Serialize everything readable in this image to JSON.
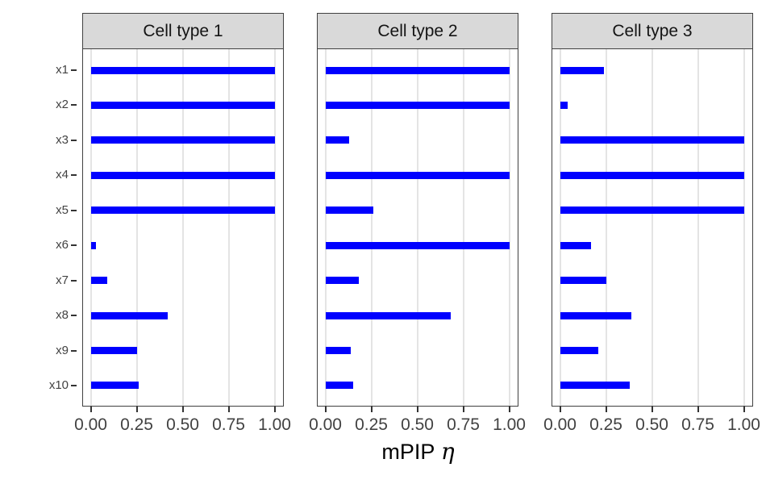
{
  "chart_data": {
    "type": "bar",
    "orientation": "horizontal",
    "title": "",
    "xlabel_text": "mPIP",
    "xlabel_symbol": "η",
    "categories": [
      "x1",
      "x2",
      "x3",
      "x4",
      "x5",
      "x6",
      "x7",
      "x8",
      "x9",
      "x10"
    ],
    "x_tick_labels": [
      "0.00",
      "0.25",
      "0.50",
      "0.75",
      "1.00"
    ],
    "x_tick_values": [
      0,
      0.25,
      0.5,
      0.75,
      1.0
    ],
    "xlim": [
      0,
      1
    ],
    "grid": "major-vertical-only",
    "legend": false,
    "series": [
      {
        "name": "Cell type 1",
        "values": [
          1.0,
          1.0,
          1.0,
          1.0,
          1.0,
          0.03,
          0.09,
          0.42,
          0.25,
          0.26
        ]
      },
      {
        "name": "Cell type 2",
        "values": [
          1.0,
          1.0,
          0.13,
          1.0,
          0.26,
          1.0,
          0.18,
          0.68,
          0.14,
          0.15
        ]
      },
      {
        "name": "Cell type 3",
        "values": [
          0.24,
          0.04,
          1.0,
          1.0,
          1.0,
          0.17,
          0.25,
          0.39,
          0.21,
          0.38
        ]
      }
    ],
    "colors": {
      "bar": "#0000FF",
      "strip_background": "#D9D9D9",
      "strip_border": "#404040",
      "panel_border": "#404040",
      "panel_background": "#FFFFFF",
      "gridline": "#E4E4E4",
      "tick_mark": "#333333",
      "tick_label": "#424242",
      "axis_title": "#000000"
    }
  }
}
